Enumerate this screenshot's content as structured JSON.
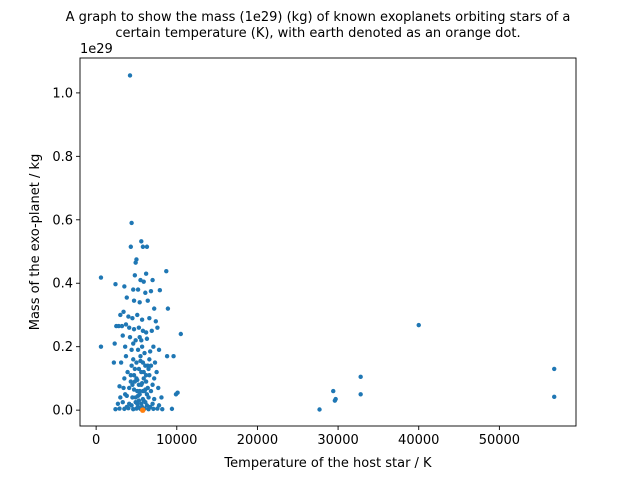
{
  "chart_data": {
    "type": "scatter",
    "title_lines": [
      "A graph to show the mass (1e29) (kg) of known exoplanets orbiting stars of a",
      "certain temperature (K), with earth denoted as an orange dot."
    ],
    "xlabel": "Temperature of the host star / K",
    "ylabel": "Mass of the exo-planet / kg",
    "y_offset_label": "1e29",
    "xlim": [
      -2000,
      59500
    ],
    "ylim": [
      -0.05,
      1.11
    ],
    "x_ticks": [
      0,
      10000,
      20000,
      30000,
      40000,
      50000
    ],
    "x_tick_labels": [
      "0",
      "10000",
      "20000",
      "30000",
      "40000",
      "50000"
    ],
    "y_ticks": [
      0.0,
      0.2,
      0.4,
      0.6,
      0.8,
      1.0
    ],
    "y_tick_labels": [
      "0.0",
      "0.2",
      "0.4",
      "0.6",
      "0.8",
      "1.0"
    ],
    "grid": false,
    "colors": {
      "exoplanets": "#1f77b4",
      "earth": "#ff7f0e"
    },
    "series": [
      {
        "points": [
          [
            4200,
            1.055
          ],
          [
            4400,
            0.59
          ],
          [
            4300,
            0.515
          ],
          [
            5600,
            0.532
          ],
          [
            5800,
            0.515
          ],
          [
            6300,
            0.515
          ],
          [
            5000,
            0.475
          ],
          [
            4900,
            0.465
          ],
          [
            8700,
            0.438
          ],
          [
            600,
            0.418
          ],
          [
            4800,
            0.425
          ],
          [
            6200,
            0.43
          ],
          [
            5500,
            0.41
          ],
          [
            5900,
            0.405
          ],
          [
            7000,
            0.41
          ],
          [
            2400,
            0.397
          ],
          [
            3500,
            0.39
          ],
          [
            4600,
            0.38
          ],
          [
            5200,
            0.38
          ],
          [
            6100,
            0.37
          ],
          [
            6800,
            0.375
          ],
          [
            7900,
            0.378
          ],
          [
            3800,
            0.355
          ],
          [
            4700,
            0.345
          ],
          [
            5400,
            0.34
          ],
          [
            6400,
            0.345
          ],
          [
            7200,
            0.32
          ],
          [
            8900,
            0.32
          ],
          [
            3000,
            0.3
          ],
          [
            3400,
            0.31
          ],
          [
            4000,
            0.295
          ],
          [
            4500,
            0.29
          ],
          [
            5100,
            0.3
          ],
          [
            5700,
            0.285
          ],
          [
            6600,
            0.29
          ],
          [
            7400,
            0.28
          ],
          [
            2500,
            0.265
          ],
          [
            2800,
            0.265
          ],
          [
            3200,
            0.265
          ],
          [
            3700,
            0.27
          ],
          [
            4100,
            0.26
          ],
          [
            4700,
            0.255
          ],
          [
            5300,
            0.26
          ],
          [
            5800,
            0.25
          ],
          [
            6200,
            0.245
          ],
          [
            6900,
            0.25
          ],
          [
            7600,
            0.26
          ],
          [
            10500,
            0.24
          ],
          [
            40000,
            0.268
          ],
          [
            600,
            0.2
          ],
          [
            3300,
            0.235
          ],
          [
            4200,
            0.23
          ],
          [
            4900,
            0.22
          ],
          [
            5600,
            0.22
          ],
          [
            6300,
            0.225
          ],
          [
            7100,
            0.2
          ],
          [
            2300,
            0.21
          ],
          [
            3600,
            0.2
          ],
          [
            4400,
            0.19
          ],
          [
            5200,
            0.19
          ],
          [
            6000,
            0.18
          ],
          [
            6700,
            0.185
          ],
          [
            7800,
            0.19
          ],
          [
            8800,
            0.17
          ],
          [
            9600,
            0.17
          ],
          [
            2200,
            0.15
          ],
          [
            3100,
            0.15
          ],
          [
            4600,
            0.16
          ],
          [
            5500,
            0.155
          ],
          [
            6400,
            0.14
          ],
          [
            7300,
            0.15
          ],
          [
            3900,
            0.12
          ],
          [
            4800,
            0.13
          ],
          [
            5900,
            0.12
          ],
          [
            6600,
            0.11
          ],
          [
            7500,
            0.12
          ],
          [
            56800,
            0.13
          ],
          [
            32800,
            0.105
          ],
          [
            3500,
            0.1
          ],
          [
            4300,
            0.09
          ],
          [
            5100,
            0.095
          ],
          [
            5700,
            0.085
          ],
          [
            6200,
            0.09
          ],
          [
            7000,
            0.08
          ],
          [
            2900,
            0.075
          ],
          [
            3400,
            0.07
          ],
          [
            4700,
            0.065
          ],
          [
            5400,
            0.06
          ],
          [
            6100,
            0.065
          ],
          [
            6800,
            0.06
          ],
          [
            7700,
            0.07
          ],
          [
            29400,
            0.06
          ],
          [
            9900,
            0.05
          ],
          [
            10100,
            0.055
          ],
          [
            32800,
            0.05
          ],
          [
            56800,
            0.042
          ],
          [
            29600,
            0.03
          ],
          [
            29700,
            0.035
          ],
          [
            3000,
            0.04
          ],
          [
            3800,
            0.045
          ],
          [
            4500,
            0.04
          ],
          [
            5200,
            0.045
          ],
          [
            5800,
            0.035
          ],
          [
            6500,
            0.04
          ],
          [
            7200,
            0.035
          ],
          [
            8100,
            0.04
          ],
          [
            2700,
            0.02
          ],
          [
            3300,
            0.025
          ],
          [
            4100,
            0.02
          ],
          [
            4900,
            0.025
          ],
          [
            5600,
            0.02
          ],
          [
            6300,
            0.015
          ],
          [
            7000,
            0.02
          ],
          [
            7800,
            0.015
          ],
          [
            2400,
            0.003
          ],
          [
            2900,
            0.005
          ],
          [
            3500,
            0.004
          ],
          [
            4000,
            0.006
          ],
          [
            4600,
            0.003
          ],
          [
            5000,
            0.005
          ],
          [
            5500,
            0.004
          ],
          [
            6000,
            0.005
          ],
          [
            6500,
            0.003
          ],
          [
            7100,
            0.004
          ],
          [
            7600,
            0.005
          ],
          [
            8200,
            0.003
          ],
          [
            9400,
            0.004
          ],
          [
            27700,
            0.002
          ],
          [
            5300,
            0.13
          ],
          [
            5000,
            0.1
          ],
          [
            5800,
            0.15
          ],
          [
            6000,
            0.06
          ],
          [
            5300,
            0.03
          ],
          [
            4800,
            0.09
          ],
          [
            6200,
            0.11
          ],
          [
            5500,
            0.17
          ],
          [
            4400,
            0.14
          ],
          [
            6600,
            0.16
          ],
          [
            5600,
            0.08
          ],
          [
            5100,
            0.06
          ],
          [
            5900,
            0.03
          ],
          [
            4900,
            0.04
          ],
          [
            6300,
            0.05
          ],
          [
            4300,
            0.11
          ],
          [
            6500,
            0.13
          ],
          [
            5700,
            0.2
          ],
          [
            5400,
            0.23
          ],
          [
            4600,
            0.21
          ],
          [
            3700,
            0.17
          ],
          [
            6800,
            0.14
          ],
          [
            7200,
            0.1
          ],
          [
            4100,
            0.07
          ],
          [
            3600,
            0.05
          ],
          [
            5200,
            0.01
          ],
          [
            5700,
            0.01
          ],
          [
            6100,
            0.025
          ],
          [
            4400,
            0.015
          ],
          [
            6700,
            0.01
          ],
          [
            3800,
            0.01
          ],
          [
            5000,
            0.15
          ],
          [
            5300,
            0.08
          ],
          [
            5900,
            0.1
          ],
          [
            5600,
            0.12
          ],
          [
            6100,
            0.14
          ],
          [
            4700,
            0.11
          ],
          [
            5400,
            0.05
          ],
          [
            5800,
            0.06
          ],
          [
            6400,
            0.07
          ],
          [
            4500,
            0.08
          ],
          [
            5100,
            0.02
          ]
        ]
      },
      {
        "points": [
          [
            5778,
            5.97e-05
          ]
        ]
      }
    ]
  }
}
